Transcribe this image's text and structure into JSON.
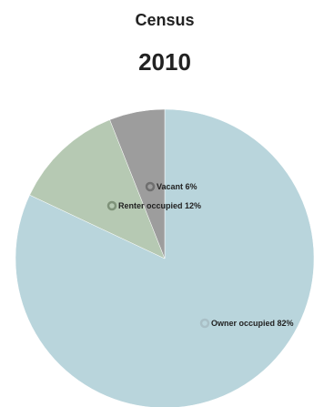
{
  "title": "Census",
  "subtitle": "2010",
  "chart_data": {
    "type": "pie",
    "title": "Census",
    "subtitle": "2010",
    "slices": [
      {
        "label": "Owner occupied",
        "value": 82,
        "display": "Owner occupied 82%",
        "color": "#b9d5dc",
        "marker_color": "#a9bfc6"
      },
      {
        "label": "Renter occupied",
        "value": 12,
        "display": "Renter occupied 12%",
        "color": "#b6c9b3",
        "marker_color": "#7e9279"
      },
      {
        "label": "Vacant",
        "value": 6,
        "display": "Vacant 6%",
        "color": "#9d9d9d",
        "marker_color": "#6f6f6f"
      }
    ],
    "start_angle_deg": 0,
    "direction": "clockwise",
    "legend": "none"
  }
}
